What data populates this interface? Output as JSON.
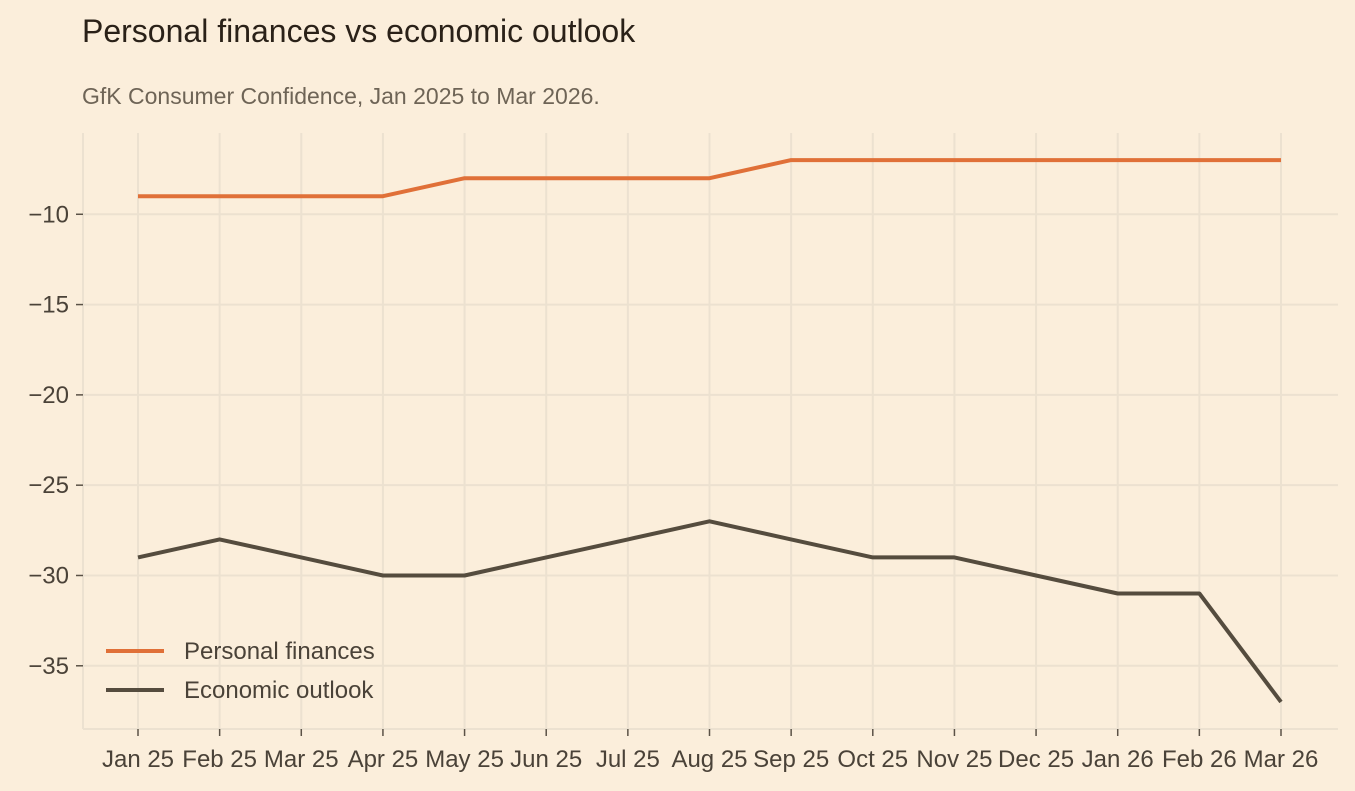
{
  "chart_data": {
    "type": "line",
    "title": "Personal finances vs economic outlook",
    "subtitle": "GfK Consumer Confidence, Jan 2025 to Mar 2026.",
    "xlabel": "",
    "ylabel": "",
    "categories": [
      "Jan 25",
      "Feb 25",
      "Mar 25",
      "Apr 25",
      "May 25",
      "Jun 25",
      "Jul 25",
      "Aug 25",
      "Sep 25",
      "Oct 25",
      "Nov 25",
      "Dec 25",
      "Jan 26",
      "Feb 26",
      "Mar 26"
    ],
    "ylim": [
      -38.5,
      -5.5
    ],
    "yticks": [
      -10,
      -15,
      -20,
      -25,
      -30,
      -35
    ],
    "ytick_labels": [
      "−10",
      "−15",
      "−20",
      "−25",
      "−30",
      "−35"
    ],
    "grid": true,
    "legend_position": "bottom-left",
    "series": [
      {
        "name": "Personal finances",
        "color": "#E07038",
        "values": [
          -9,
          -9,
          -9,
          -9,
          -8,
          -8,
          -8,
          -8,
          -7,
          -7,
          -7,
          -7,
          -7,
          -7,
          -7
        ]
      },
      {
        "name": "Economic outlook",
        "color": "#554C3E",
        "values": [
          -29,
          -28,
          -29,
          -30,
          -30,
          -29,
          -28,
          -27,
          -28,
          -29,
          -29,
          -30,
          -31,
          -31,
          -37
        ]
      }
    ]
  }
}
